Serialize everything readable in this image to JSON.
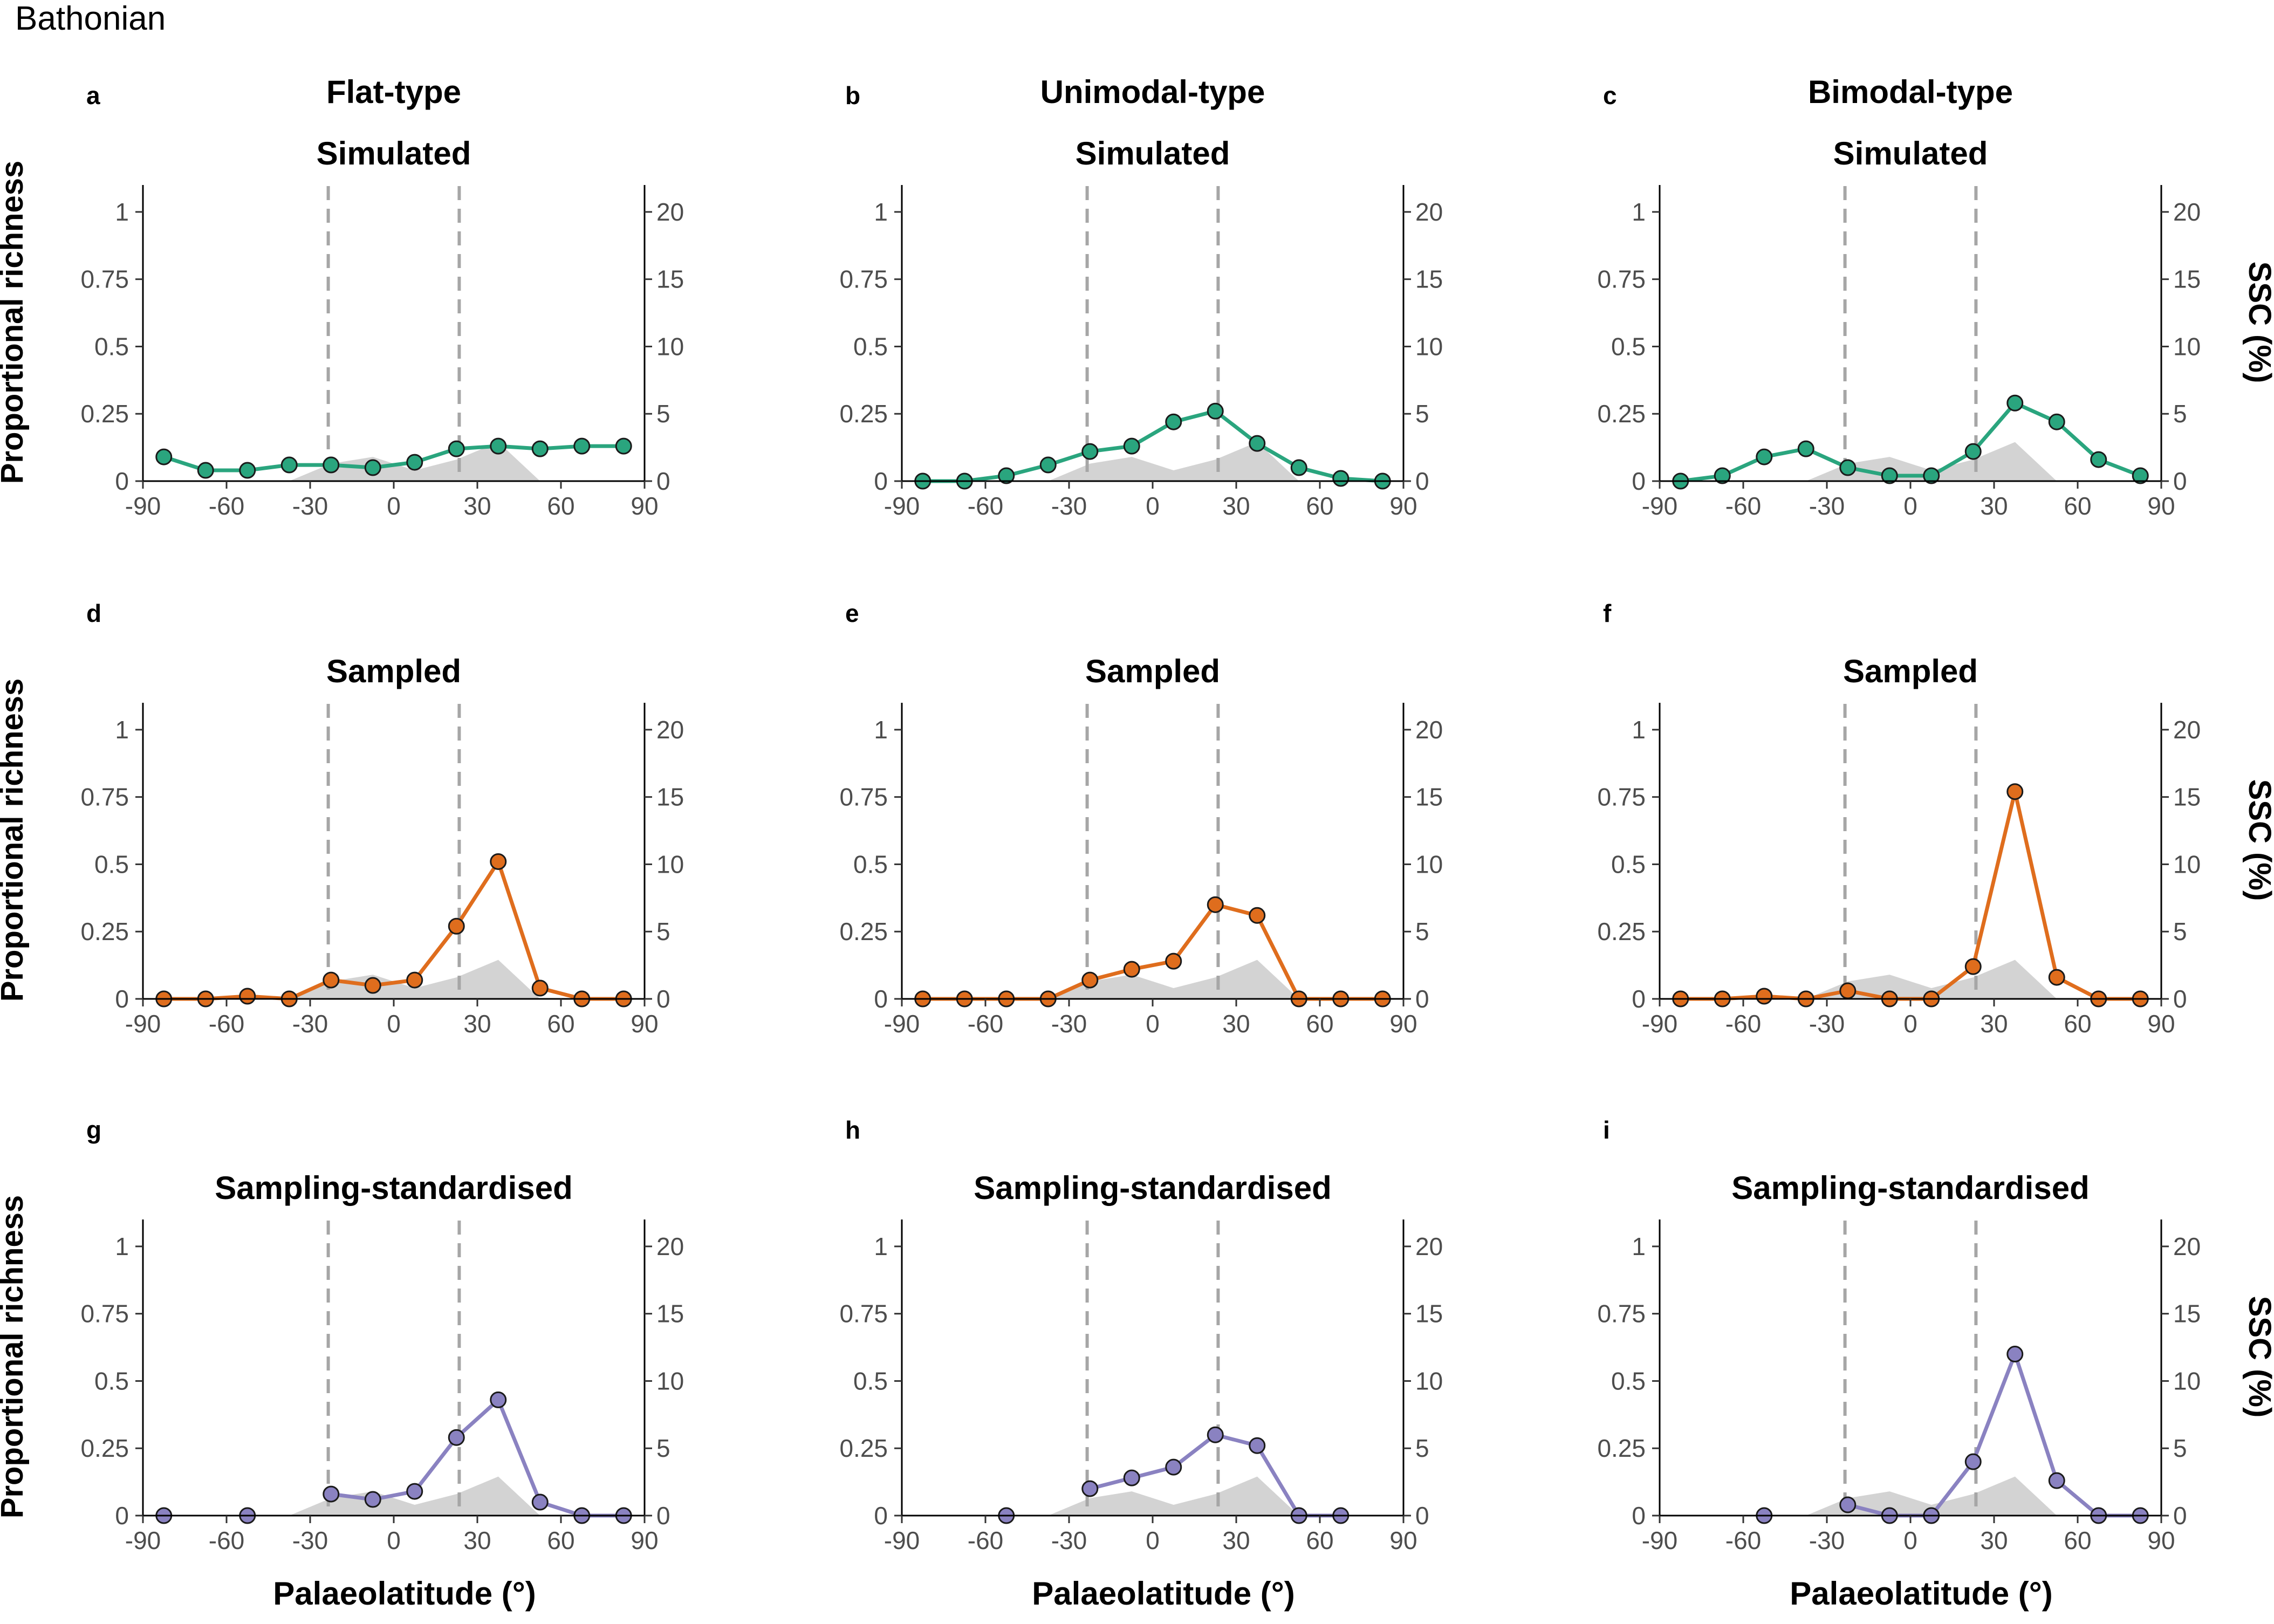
{
  "figure_title": "Bathonian",
  "column_titles": [
    "Flat-type",
    "Unimodal-type",
    "Bimodal-type"
  ],
  "row_titles": [
    "Simulated",
    "Sampled",
    "Sampling-standardised"
  ],
  "y_left_label": "Proportional richness",
  "y_right_label": "SSC (%)",
  "x_label": "Palaeolatitude (°)",
  "x_ticks": [
    "-90",
    "-60",
    "-30",
    "0",
    "30",
    "60",
    "90"
  ],
  "y_left_ticks": [
    "0",
    "0.25",
    "0.5",
    "0.75",
    "1"
  ],
  "y_right_ticks": [
    "0",
    "5",
    "10",
    "15",
    "20"
  ],
  "colors": {
    "simulated": "#2aa57e",
    "sampled": "#df6d1d",
    "standardised": "#8a82c1",
    "ssc_area": "#d3d3d3",
    "tropic_lines": "#a6a6a6"
  },
  "chart_data": [
    {
      "panel": "a",
      "type": "line",
      "xlabel": "Palaeolatitude (°)",
      "ylabel": "Proportional richness",
      "y2label": "SSC (%)",
      "xlim": [
        -90,
        90
      ],
      "ylim": [
        0,
        1.1
      ],
      "y2lim": [
        0,
        22
      ],
      "reference_lines_x": [
        -23.5,
        23.5
      ],
      "series": [
        {
          "x": [
            -82.5,
            -67.5,
            -52.5,
            -37.5,
            -22.5,
            -7.5,
            7.5,
            22.5,
            37.5,
            52.5,
            67.5,
            82.5
          ],
          "values": [
            0.09,
            0.04,
            0.04,
            0.06,
            0.06,
            0.05,
            0.07,
            0.12,
            0.13,
            0.12,
            0.13,
            0.13
          ]
        }
      ],
      "ssc": {
        "x": [
          -82.5,
          -67.5,
          -52.5,
          -37.5,
          -22.5,
          -7.5,
          7.5,
          22.5,
          37.5,
          52.5
        ],
        "values": [
          0,
          0,
          0,
          0,
          1.3,
          1.8,
          0.8,
          1.6,
          2.9,
          0
        ]
      }
    },
    {
      "panel": "b",
      "type": "line",
      "xlabel": "",
      "ylabel": "",
      "y2label": "",
      "xlim": [
        -90,
        90
      ],
      "ylim": [
        0,
        1.1
      ],
      "y2lim": [
        0,
        22
      ],
      "reference_lines_x": [
        -23.5,
        23.5
      ],
      "series": [
        {
          "x": [
            -82.5,
            -67.5,
            -52.5,
            -37.5,
            -22.5,
            -7.5,
            7.5,
            22.5,
            37.5,
            52.5,
            67.5,
            82.5
          ],
          "values": [
            0,
            0,
            0.02,
            0.06,
            0.11,
            0.13,
            0.22,
            0.26,
            0.14,
            0.05,
            0.01,
            0
          ]
        }
      ],
      "ssc": {
        "x": [
          -82.5,
          -67.5,
          -52.5,
          -37.5,
          -22.5,
          -7.5,
          7.5,
          22.5,
          37.5,
          52.5
        ],
        "values": [
          0,
          0,
          0,
          0,
          1.3,
          1.8,
          0.8,
          1.6,
          2.9,
          0
        ]
      }
    },
    {
      "panel": "c",
      "type": "line",
      "xlabel": "",
      "ylabel": "",
      "y2label": "SSC (%)",
      "xlim": [
        -90,
        90
      ],
      "ylim": [
        0,
        1.1
      ],
      "y2lim": [
        0,
        22
      ],
      "reference_lines_x": [
        -23.5,
        23.5
      ],
      "series": [
        {
          "x": [
            -82.5,
            -67.5,
            -52.5,
            -37.5,
            -22.5,
            -7.5,
            7.5,
            22.5,
            37.5,
            52.5,
            67.5,
            82.5
          ],
          "values": [
            0,
            0.02,
            0.09,
            0.12,
            0.05,
            0.02,
            0.02,
            0.11,
            0.29,
            0.22,
            0.08,
            0.02
          ]
        }
      ],
      "ssc": {
        "x": [
          -82.5,
          -67.5,
          -52.5,
          -37.5,
          -22.5,
          -7.5,
          7.5,
          22.5,
          37.5,
          52.5
        ],
        "values": [
          0,
          0,
          0,
          0,
          1.3,
          1.8,
          0.8,
          1.6,
          2.9,
          0
        ]
      }
    },
    {
      "panel": "d",
      "type": "line",
      "xlabel": "",
      "ylabel": "Proportional richness",
      "y2label": "",
      "xlim": [
        -90,
        90
      ],
      "ylim": [
        0,
        1.1
      ],
      "y2lim": [
        0,
        22
      ],
      "reference_lines_x": [
        -23.5,
        23.5
      ],
      "series": [
        {
          "x": [
            -82.5,
            -67.5,
            -52.5,
            -37.5,
            -22.5,
            -7.5,
            7.5,
            22.5,
            37.5,
            52.5,
            67.5,
            82.5
          ],
          "values": [
            0,
            0,
            0.01,
            0,
            0.07,
            0.05,
            0.07,
            0.27,
            0.51,
            0.04,
            0,
            0
          ]
        }
      ],
      "ssc": {
        "x": [
          -82.5,
          -67.5,
          -52.5,
          -37.5,
          -22.5,
          -7.5,
          7.5,
          22.5,
          37.5,
          52.5
        ],
        "values": [
          0,
          0,
          0,
          0,
          1.3,
          1.8,
          0.8,
          1.6,
          2.9,
          0
        ]
      }
    },
    {
      "panel": "e",
      "type": "line",
      "xlabel": "",
      "ylabel": "",
      "y2label": "",
      "xlim": [
        -90,
        90
      ],
      "ylim": [
        0,
        1.1
      ],
      "y2lim": [
        0,
        22
      ],
      "reference_lines_x": [
        -23.5,
        23.5
      ],
      "series": [
        {
          "x": [
            -82.5,
            -67.5,
            -52.5,
            -37.5,
            -22.5,
            -7.5,
            7.5,
            22.5,
            37.5,
            52.5,
            67.5,
            82.5
          ],
          "values": [
            0,
            0,
            0,
            0,
            0.07,
            0.11,
            0.14,
            0.35,
            0.31,
            0,
            0,
            0
          ]
        }
      ],
      "ssc": {
        "x": [
          -82.5,
          -67.5,
          -52.5,
          -37.5,
          -22.5,
          -7.5,
          7.5,
          22.5,
          37.5,
          52.5
        ],
        "values": [
          0,
          0,
          0,
          0,
          1.3,
          1.8,
          0.8,
          1.6,
          2.9,
          0
        ]
      }
    },
    {
      "panel": "f",
      "type": "line",
      "xlabel": "",
      "ylabel": "",
      "y2label": "SSC (%)",
      "xlim": [
        -90,
        90
      ],
      "ylim": [
        0,
        1.1
      ],
      "y2lim": [
        0,
        22
      ],
      "reference_lines_x": [
        -23.5,
        23.5
      ],
      "series": [
        {
          "x": [
            -82.5,
            -67.5,
            -52.5,
            -37.5,
            -22.5,
            -7.5,
            7.5,
            22.5,
            37.5,
            52.5,
            67.5,
            82.5
          ],
          "values": [
            0,
            0,
            0.01,
            0,
            0.03,
            0,
            0,
            0.12,
            0.77,
            0.08,
            0,
            0
          ]
        }
      ],
      "ssc": {
        "x": [
          -82.5,
          -67.5,
          -52.5,
          -37.5,
          -22.5,
          -7.5,
          7.5,
          22.5,
          37.5,
          52.5
        ],
        "values": [
          0,
          0,
          0,
          0,
          1.3,
          1.8,
          0.8,
          1.6,
          2.9,
          0
        ]
      }
    },
    {
      "panel": "g",
      "type": "line",
      "xlabel": "Palaeolatitude (°)",
      "ylabel": "Proportional richness",
      "y2label": "",
      "xlim": [
        -90,
        90
      ],
      "ylim": [
        0,
        1.1
      ],
      "y2lim": [
        0,
        22
      ],
      "reference_lines_x": [
        -23.5,
        23.5
      ],
      "series": [
        {
          "x": [
            -82.5
          ],
          "values": [
            0
          ]
        },
        {
          "x": [
            -52.5
          ],
          "values": [
            0
          ]
        },
        {
          "x": [
            -22.5,
            -7.5,
            7.5,
            22.5,
            37.5,
            52.5,
            67.5,
            82.5
          ],
          "values": [
            0.08,
            0.06,
            0.09,
            0.29,
            0.43,
            0.05,
            0,
            0
          ]
        }
      ],
      "ssc": {
        "x": [
          -82.5,
          -67.5,
          -52.5,
          -37.5,
          -22.5,
          -7.5,
          7.5,
          22.5,
          37.5,
          52.5
        ],
        "values": [
          0,
          0,
          0,
          0,
          1.3,
          1.8,
          0.8,
          1.6,
          2.9,
          0
        ]
      }
    },
    {
      "panel": "h",
      "type": "line",
      "xlabel": "Palaeolatitude (°)",
      "ylabel": "",
      "y2label": "",
      "xlim": [
        -90,
        90
      ],
      "ylim": [
        0,
        1.1
      ],
      "y2lim": [
        0,
        22
      ],
      "reference_lines_x": [
        -23.5,
        23.5
      ],
      "series": [
        {
          "x": [
            -52.5
          ],
          "values": [
            0
          ]
        },
        {
          "x": [
            -22.5,
            -7.5,
            7.5,
            22.5,
            37.5,
            52.5,
            67.5
          ],
          "values": [
            0.1,
            0.14,
            0.18,
            0.3,
            0.26,
            0,
            0
          ]
        }
      ],
      "ssc": {
        "x": [
          -82.5,
          -67.5,
          -52.5,
          -37.5,
          -22.5,
          -7.5,
          7.5,
          22.5,
          37.5,
          52.5
        ],
        "values": [
          0,
          0,
          0,
          0,
          1.3,
          1.8,
          0.8,
          1.6,
          2.9,
          0
        ]
      }
    },
    {
      "panel": "i",
      "type": "line",
      "xlabel": "Palaeolatitude (°)",
      "ylabel": "",
      "y2label": "SSC (%)",
      "xlim": [
        -90,
        90
      ],
      "ylim": [
        0,
        1.1
      ],
      "y2lim": [
        0,
        22
      ],
      "reference_lines_x": [
        -23.5,
        23.5
      ],
      "series": [
        {
          "x": [
            -52.5
          ],
          "values": [
            0
          ]
        },
        {
          "x": [
            -22.5,
            -7.5,
            7.5,
            22.5,
            37.5,
            52.5,
            67.5,
            82.5
          ],
          "values": [
            0.04,
            0,
            0,
            0.2,
            0.6,
            0.13,
            0,
            0
          ]
        }
      ],
      "ssc": {
        "x": [
          -82.5,
          -67.5,
          -52.5,
          -37.5,
          -22.5,
          -7.5,
          7.5,
          22.5,
          37.5,
          52.5
        ],
        "values": [
          0,
          0,
          0,
          0,
          1.3,
          1.8,
          0.8,
          1.6,
          2.9,
          0
        ]
      }
    }
  ]
}
